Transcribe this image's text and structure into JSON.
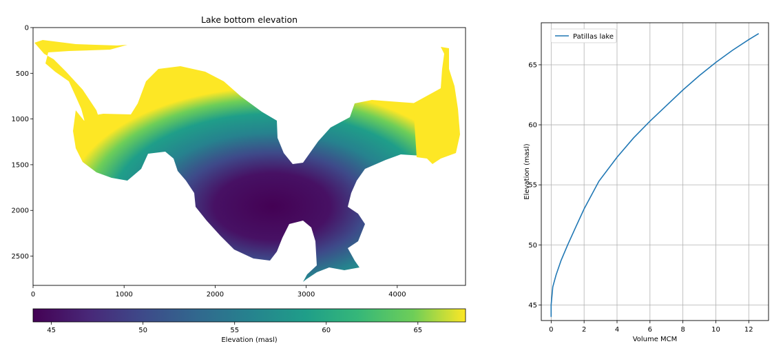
{
  "chart_data": [
    {
      "type": "heatmap",
      "title": "Lake bottom elevation",
      "xlim": [
        0,
        4750
      ],
      "ylim": [
        2820,
        0
      ],
      "xticks": [
        "0",
        "1000",
        "2000",
        "3000",
        "4000"
      ],
      "yticks": [
        "0",
        "500",
        "1000",
        "1500",
        "2000",
        "2500"
      ],
      "colormap": "viridis",
      "colorbar": {
        "label": "Elevation (masl)",
        "range": [
          44,
          67.6
        ],
        "ticks": [
          "45",
          "50",
          "55",
          "60",
          "65"
        ]
      }
    },
    {
      "type": "line",
      "xlabel": "Volume MCM",
      "ylabel": "Elevation (masl)",
      "xlim": [
        -0.6,
        13.2
      ],
      "ylim": [
        43.7,
        68.5
      ],
      "xticks": [
        "0",
        "2",
        "4",
        "6",
        "8",
        "10",
        "12"
      ],
      "yticks": [
        "45",
        "50",
        "55",
        "60",
        "65"
      ],
      "grid": true,
      "legend_position": "top-left",
      "series": [
        {
          "name": "Patillas lake",
          "color": "#1f77b4",
          "x": [
            0,
            0,
            0.1,
            0.3,
            0.6,
            1.0,
            1.5,
            2.0,
            2.9,
            4.0,
            5.0,
            6.0,
            7.0,
            8.0,
            9.0,
            10.0,
            11.0,
            12.0,
            12.6
          ],
          "y": [
            44.0,
            45.0,
            46.5,
            47.5,
            48.7,
            50.0,
            51.5,
            53.0,
            55.3,
            57.3,
            58.9,
            60.3,
            61.6,
            62.9,
            64.1,
            65.2,
            66.2,
            67.1,
            67.6
          ]
        }
      ]
    }
  ]
}
